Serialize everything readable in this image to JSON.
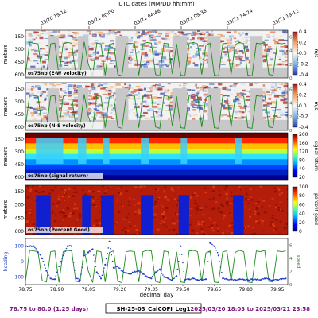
{
  "figure": {
    "top_axis_title": "UTC dates (MM/DD hh:mm)",
    "top_ticks": [
      "03/20 19:12",
      "03/21 00:00",
      "03/21 04:48",
      "03/21 09:36",
      "03/21 14:24",
      "03/21 19:12"
    ],
    "meters_label": "meters",
    "depth_ticks": [
      "150",
      "300",
      "450",
      "600"
    ],
    "speed_ticks": [
      "0",
      "2",
      "4",
      "6"
    ],
    "speed_label": "speed (m/s)",
    "speed_color": "#1e8a1e",
    "heading_color": "#1e3fc8",
    "footer_left": "78.75 to 80.0 (1.25 days)",
    "footer_center": "SH-25-03_CalCOFI_Leg1",
    "footer_right": "2025/03/20 18:03 to 2025/03/21 23:58",
    "footer_color": "#7a0f7a"
  },
  "chart_data": [
    {
      "type": "heatmap",
      "title": "os75nb (E-W velocity)",
      "ylabel": "meters",
      "colorbar_label": "m/s",
      "colorbar_ticks": [
        "0.4",
        "0.2",
        "0.0",
        "-0.2",
        "-0.4"
      ],
      "zlim": [
        -0.4,
        0.4
      ],
      "ylim": [
        0,
        700
      ],
      "colormap": "RdBu_r"
    },
    {
      "type": "heatmap",
      "title": "os75nb (N-S velocity)",
      "ylabel": "meters",
      "colorbar_label": "m/s",
      "colorbar_ticks": [
        "0.4",
        "0.2",
        "0.0",
        "-0.2",
        "-0.4"
      ],
      "zlim": [
        -0.4,
        0.4
      ],
      "ylim": [
        0,
        700
      ],
      "colormap": "RdBu_r"
    },
    {
      "type": "heatmap",
      "title": "os75nb (signal return)",
      "ylabel": "meters",
      "colorbar_label": "signal return",
      "colorbar_ticks": [
        "200",
        "160",
        "120",
        "80",
        "40",
        "20"
      ],
      "zlim": [
        20,
        200
      ],
      "ylim": [
        0,
        700
      ],
      "colormap": "jet"
    },
    {
      "type": "heatmap",
      "title": "os75nb (Percent Good)",
      "ylabel": "meters",
      "colorbar_label": "percent good",
      "colorbar_ticks": [
        "100",
        "80",
        "60",
        "40",
        "20",
        "0"
      ],
      "zlim": [
        0,
        100
      ],
      "ylim": [
        0,
        700
      ],
      "colormap": "jet"
    },
    {
      "type": "line",
      "title": "",
      "xlabel": "decimal day",
      "ylabel": "heading",
      "y2label": "speed",
      "x_ticks": [
        "78.75",
        "78.90",
        "79.05",
        "79.20",
        "79.35",
        "79.50",
        "79.65",
        "79.80",
        "79.95"
      ],
      "xlim": [
        78.75,
        80.0
      ],
      "ylim": [
        -150,
        150
      ],
      "y_ticks": [
        "100",
        "0",
        "-100"
      ],
      "y2lim": [
        0,
        7
      ],
      "y2_ticks": [
        "6",
        "4",
        "2",
        "0"
      ],
      "series": [
        {
          "role": "speed",
          "x": [
            78.75,
            78.77,
            78.79,
            78.81,
            78.83,
            78.85,
            78.87,
            78.89,
            78.91,
            78.93,
            78.95,
            78.97,
            78.99,
            79.01,
            79.03,
            79.05,
            79.07,
            79.09,
            79.11,
            79.13,
            79.15,
            79.17,
            79.19,
            79.21,
            79.23,
            79.25,
            79.27,
            79.29,
            79.31,
            79.33,
            79.35,
            79.37,
            79.39,
            79.41,
            79.43,
            79.45,
            79.47,
            79.49,
            79.51,
            79.53,
            79.55,
            79.57,
            79.59,
            79.61,
            79.63,
            79.65,
            79.67,
            79.69,
            79.71,
            79.73,
            79.75,
            79.77,
            79.79,
            79.81,
            79.83,
            79.85,
            79.87,
            79.89,
            79.91,
            79.93,
            79.95,
            79.97,
            79.99
          ],
          "values": [
            0.5,
            5.2,
            5.1,
            5.0,
            0.6,
            0.4,
            5.0,
            5.1,
            0.3,
            5.0,
            5.2,
            5.1,
            0.5,
            0.4,
            5.3,
            2.0,
            0.3,
            5.1,
            5.0,
            0.4,
            4.9,
            5.1,
            0.5,
            0.3,
            5.0,
            5.1,
            5.0,
            0.4,
            5.0,
            5.2,
            5.1,
            0.5,
            0.3,
            5.1,
            5.0,
            0.6,
            5.0,
            0.4,
            0.3,
            5.1,
            5.2,
            5.0,
            0.5,
            4.8,
            5.1,
            0.4,
            0.3,
            5.0,
            5.1,
            0.5,
            4.9,
            5.2,
            5.0,
            0.4,
            0.3,
            5.1,
            5.0,
            5.2,
            0.5,
            0.4,
            5.1,
            5.0,
            5.1
          ]
        },
        {
          "role": "heading",
          "x": [
            78.75,
            78.77,
            78.79,
            78.81,
            78.83,
            78.85,
            78.87,
            78.89,
            78.91,
            78.93,
            78.95,
            78.97,
            78.99,
            79.01,
            79.03,
            79.05,
            79.07,
            79.09,
            79.11,
            79.13,
            79.15,
            79.17,
            79.19,
            79.21,
            79.23,
            79.25,
            79.27,
            79.29,
            79.31,
            79.33,
            79.35,
            79.37,
            79.39,
            79.41,
            79.43,
            79.45,
            79.47,
            79.49,
            79.51,
            79.53,
            79.55,
            79.57,
            79.59,
            79.61,
            79.63,
            79.65,
            79.67,
            79.69,
            79.71,
            79.73,
            79.75,
            79.77,
            79.79,
            79.81,
            79.83,
            79.85,
            79.87,
            79.89,
            79.91,
            79.93,
            79.95,
            79.97,
            79.99
          ],
          "values": [
            100,
            100,
            100,
            60,
            20,
            -60,
            -110,
            -115,
            -30,
            40,
            100,
            100,
            -110,
            -120,
            40,
            60,
            80,
            -70,
            -110,
            -20,
            130,
            -40,
            -30,
            -60,
            -75,
            -80,
            -65,
            -60,
            -80,
            -100,
            -110,
            -70,
            -50,
            -100,
            -110,
            -120,
            -95,
            100,
            -120,
            -115,
            -110,
            -120,
            -118,
            -115,
            120,
            100,
            40,
            -110,
            -115,
            -118,
            -120,
            -115,
            -118,
            -120,
            -115,
            -118,
            -120,
            -110,
            -115,
            -120,
            -118,
            -115,
            -110
          ]
        }
      ]
    }
  ]
}
